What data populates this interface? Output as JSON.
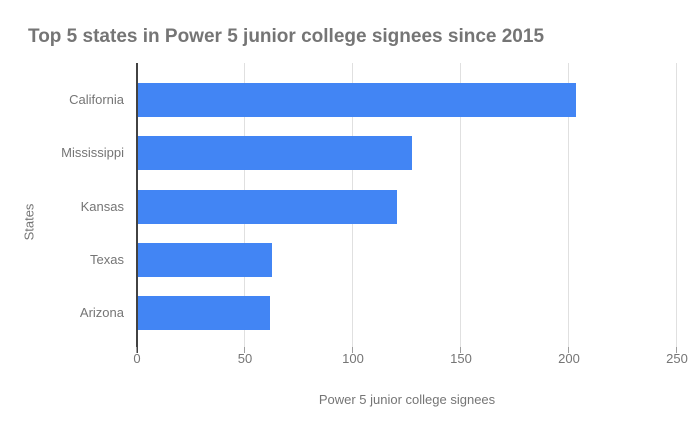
{
  "chart_data": {
    "type": "bar",
    "orientation": "horizontal",
    "title": "Top 5 states in Power 5 junior college signees since 2015",
    "categories": [
      "California",
      "Mississippi",
      "Kansas",
      "Texas",
      "Arizona"
    ],
    "values": [
      203,
      127,
      120,
      62,
      61
    ],
    "xlabel": "Power 5 junior college signees",
    "ylabel": "States",
    "xlim": [
      0,
      250
    ],
    "xticks": [
      0,
      50,
      100,
      150,
      200,
      250
    ],
    "grid": true,
    "legend": "none",
    "bar_color": "#4285f4",
    "colors": {
      "title": "#757575",
      "labels": "#757575",
      "axis_line": "#424242",
      "gridline": "#e0e0e0",
      "tick": "#9e9e9e",
      "background": "#ffffff"
    }
  }
}
